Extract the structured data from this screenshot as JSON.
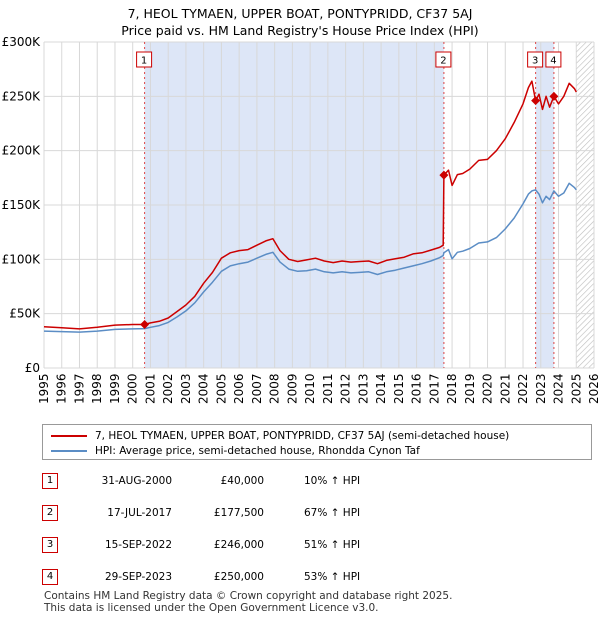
{
  "chart_data": {
    "type": "line",
    "title": "7, HEOL TYMAEN, UPPER BOAT, PONTYPRIDD, CF37 5AJ",
    "subtitle": "Price paid vs. HM Land Registry's House Price Index (HPI)",
    "xlabel": "",
    "ylabel": "",
    "xlim": [
      1995,
      2026
    ],
    "ylim": [
      0,
      300000
    ],
    "x_ticks": [
      "1995",
      "1996",
      "1997",
      "1998",
      "1999",
      "2000",
      "2001",
      "2002",
      "2003",
      "2004",
      "2005",
      "2006",
      "2007",
      "2008",
      "2009",
      "2010",
      "2011",
      "2012",
      "2013",
      "2014",
      "2015",
      "2016",
      "2017",
      "2018",
      "2019",
      "2020",
      "2021",
      "2022",
      "2023",
      "2024",
      "2025",
      "2026"
    ],
    "y_ticks": [
      {
        "value": 0,
        "label": "£0"
      },
      {
        "value": 50000,
        "label": "£50K"
      },
      {
        "value": 100000,
        "label": "£100K"
      },
      {
        "value": 150000,
        "label": "£150K"
      },
      {
        "value": 200000,
        "label": "£200K"
      },
      {
        "value": 250000,
        "label": "£250K"
      },
      {
        "value": 300000,
        "label": "£300K"
      }
    ],
    "colors": {
      "property": "#cc0000",
      "hpi": "#5b8dc5",
      "shade": "#dde6f7",
      "hatch": "#bbbbbb",
      "grid": "#d8d8d8"
    },
    "owned_periods": [
      [
        2000.67,
        2017.54
      ],
      [
        2022.71,
        2023.74
      ]
    ],
    "future_start": 2025.0,
    "series": [
      {
        "name": "7, HEOL TYMAEN, UPPER BOAT, PONTYPRIDD, CF37 5AJ (semi-detached house)",
        "color": "#cc0000",
        "x": [
          1995.0,
          1996.0,
          1997.0,
          1998.0,
          1999.0,
          2000.0,
          2000.67,
          2001.0,
          2001.5,
          2002.0,
          2002.5,
          2003.0,
          2003.5,
          2004.0,
          2004.5,
          2005.0,
          2005.5,
          2006.0,
          2006.5,
          2007.0,
          2007.5,
          2007.9,
          2008.3,
          2008.8,
          2009.3,
          2009.8,
          2010.3,
          2010.8,
          2011.3,
          2011.8,
          2012.3,
          2012.8,
          2013.3,
          2013.8,
          2014.3,
          2014.8,
          2015.3,
          2015.8,
          2016.3,
          2016.8,
          2017.3,
          2017.5,
          2017.54,
          2017.8,
          2018.0,
          2018.3,
          2018.6,
          2019.0,
          2019.5,
          2020.0,
          2020.5,
          2021.0,
          2021.5,
          2022.0,
          2022.3,
          2022.5,
          2022.71,
          2022.9,
          2023.1,
          2023.3,
          2023.5,
          2023.74,
          2024.0,
          2024.3,
          2024.6,
          2024.9,
          2025.0
        ],
        "values": [
          38000,
          37000,
          36000,
          37500,
          39500,
          40000,
          40000,
          41500,
          43000,
          46000,
          52000,
          58000,
          66000,
          78000,
          88000,
          101000,
          106000,
          108000,
          109000,
          113000,
          117000,
          119000,
          108000,
          100000,
          98000,
          99500,
          101000,
          98500,
          97000,
          98500,
          97500,
          98000,
          98500,
          96000,
          99000,
          100500,
          102000,
          105000,
          106000,
          108500,
          111000,
          113000,
          177500,
          182000,
          168000,
          178000,
          179000,
          183000,
          191000,
          192000,
          200000,
          211000,
          226000,
          243000,
          258000,
          264000,
          246000,
          252000,
          238000,
          250000,
          240000,
          250000,
          243000,
          250000,
          262000,
          257000,
          254000
        ]
      },
      {
        "name": "HPI: Average price, semi-detached house, Rhondda Cynon Taf",
        "color": "#5b8dc5",
        "x": [
          1995.0,
          1996.0,
          1997.0,
          1998.0,
          1999.0,
          2000.0,
          2000.67,
          2001.0,
          2001.5,
          2002.0,
          2002.5,
          2003.0,
          2003.5,
          2004.0,
          2004.5,
          2005.0,
          2005.5,
          2006.0,
          2006.5,
          2007.0,
          2007.5,
          2007.9,
          2008.3,
          2008.8,
          2009.3,
          2009.8,
          2010.3,
          2010.8,
          2011.3,
          2011.8,
          2012.3,
          2012.8,
          2013.3,
          2013.8,
          2014.3,
          2014.8,
          2015.3,
          2015.8,
          2016.3,
          2016.8,
          2017.3,
          2017.5,
          2017.54,
          2017.8,
          2018.0,
          2018.3,
          2018.6,
          2019.0,
          2019.5,
          2020.0,
          2020.5,
          2021.0,
          2021.5,
          2022.0,
          2022.3,
          2022.5,
          2022.71,
          2022.9,
          2023.1,
          2023.3,
          2023.5,
          2023.74,
          2024.0,
          2024.3,
          2024.6,
          2024.9,
          2025.0
        ],
        "values": [
          34000,
          33500,
          33000,
          34000,
          35500,
          36000,
          36300,
          37500,
          39000,
          42000,
          47000,
          52500,
          60000,
          70000,
          79000,
          89000,
          94000,
          96000,
          97500,
          101000,
          104500,
          106500,
          97500,
          91000,
          89000,
          89500,
          91000,
          88500,
          87500,
          88500,
          87500,
          88000,
          88500,
          86000,
          88500,
          90000,
          92000,
          94000,
          96000,
          98500,
          101500,
          103500,
          106000,
          109000,
          100500,
          106500,
          107500,
          110000,
          115000,
          116000,
          120000,
          128000,
          138000,
          151000,
          160000,
          163000,
          164000,
          160000,
          152000,
          158000,
          155000,
          163000,
          158000,
          161000,
          170000,
          166000,
          164000
        ]
      }
    ],
    "sales": [
      {
        "num": "1",
        "year": 2000.67,
        "price": 40000,
        "date": "31-AUG-2000",
        "price_label": "£40,000",
        "hpi": "10% ↑ HPI"
      },
      {
        "num": "2",
        "year": 2017.54,
        "price": 177500,
        "date": "17-JUL-2017",
        "price_label": "£177,500",
        "hpi": "67% ↑ HPI"
      },
      {
        "num": "3",
        "year": 2022.71,
        "price": 246000,
        "date": "15-SEP-2022",
        "price_label": "£246,000",
        "hpi": "51% ↑ HPI"
      },
      {
        "num": "4",
        "year": 2023.74,
        "price": 250000,
        "date": "29-SEP-2023",
        "price_label": "£250,000",
        "hpi": "53% ↑ HPI"
      }
    ]
  },
  "legend": {
    "property": "7, HEOL TYMAEN, UPPER BOAT, PONTYPRIDD, CF37 5AJ (semi-detached house)",
    "hpi": "HPI: Average price, semi-detached house, Rhondda Cynon Taf"
  },
  "footer": {
    "line1": "Contains HM Land Registry data © Crown copyright and database right 2025.",
    "line2": "This data is licensed under the Open Government Licence v3.0."
  }
}
